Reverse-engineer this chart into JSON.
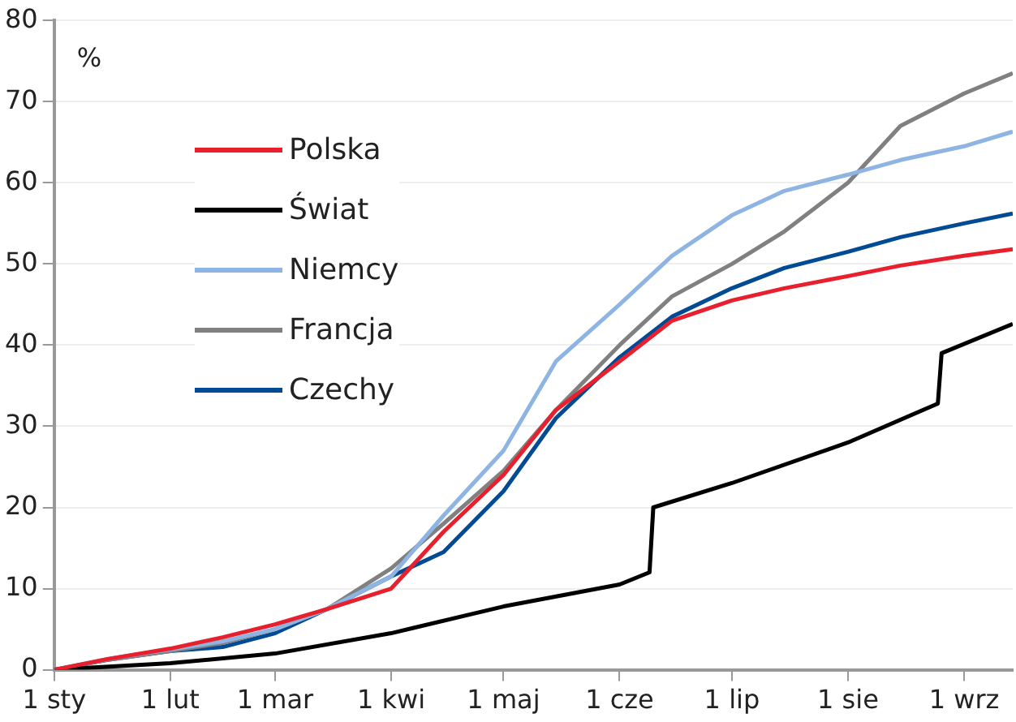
{
  "chart_data": {
    "type": "line",
    "ylabel": "%",
    "x": [
      "--01-01",
      "--01-15",
      "--02-01",
      "--02-15",
      "--03-01",
      "--03-15",
      "--04-01",
      "--04-15",
      "--05-01",
      "--05-15",
      "--06-01",
      "--06-15",
      "--07-01",
      "--07-15",
      "--08-01",
      "--08-15",
      "--09-01",
      "--09-14"
    ],
    "series": [
      {
        "name": "Polska",
        "color": "#e8202e",
        "values": [
          0,
          1.3,
          2.6,
          4,
          5.6,
          7.5,
          10,
          17,
          24,
          32,
          38,
          43,
          45.5,
          47,
          48.5,
          49.8,
          51,
          51.8
        ]
      },
      {
        "name": "Świat",
        "color": "#000000",
        "x": [
          "--01-01",
          "--02-01",
          "--03-01",
          "--04-01",
          "--05-01",
          "--06-01",
          "--06-09",
          "--06-10",
          "--07-01",
          "--08-01",
          "--08-25",
          "--08-26",
          "--09-14"
        ],
        "values": [
          0,
          0.8,
          2,
          4.5,
          7.8,
          10.5,
          12,
          20,
          23,
          28,
          32.8,
          39,
          42.6
        ]
      },
      {
        "name": "Niemcy",
        "color": "#8db4e2",
        "values": [
          0,
          1.3,
          2.5,
          3.5,
          5,
          7.5,
          11.5,
          19,
          27,
          38,
          45,
          51,
          56,
          59,
          61,
          62.8,
          64.5,
          66.3
        ]
      },
      {
        "name": "Francja",
        "color": "#808080",
        "values": [
          0,
          1.2,
          2.3,
          3.3,
          5,
          7.5,
          12.5,
          18,
          24.5,
          32,
          40,
          46,
          50,
          54,
          60,
          67,
          71,
          73.5
        ]
      },
      {
        "name": "Czechy",
        "color": "#004b93",
        "values": [
          0,
          1.2,
          2.3,
          2.8,
          4.5,
          7.5,
          11.5,
          14.5,
          22,
          31,
          38.5,
          43.5,
          47,
          49.5,
          51.5,
          53.3,
          55,
          56.2
        ]
      }
    ],
    "xlim": [
      "--01-01",
      "--09-14"
    ],
    "xticks": [
      {
        "value": "--01-01",
        "label": "1 sty"
      },
      {
        "value": "--02-01",
        "label": "1 lut"
      },
      {
        "value": "--03-01",
        "label": "1 mar"
      },
      {
        "value": "--04-01",
        "label": "1 kwi"
      },
      {
        "value": "--05-01",
        "label": "1 maj"
      },
      {
        "value": "--06-01",
        "label": "1 cze"
      },
      {
        "value": "--07-01",
        "label": "1 lip"
      },
      {
        "value": "--08-01",
        "label": "1 sie"
      },
      {
        "value": "--09-01",
        "label": "1 wrz"
      }
    ],
    "ylim": [
      0,
      80
    ],
    "yticks": [
      0,
      10,
      20,
      30,
      40,
      50,
      60,
      70,
      80
    ],
    "grid": "y",
    "legend": "top left",
    "marker": "none",
    "line_style": "solid"
  }
}
